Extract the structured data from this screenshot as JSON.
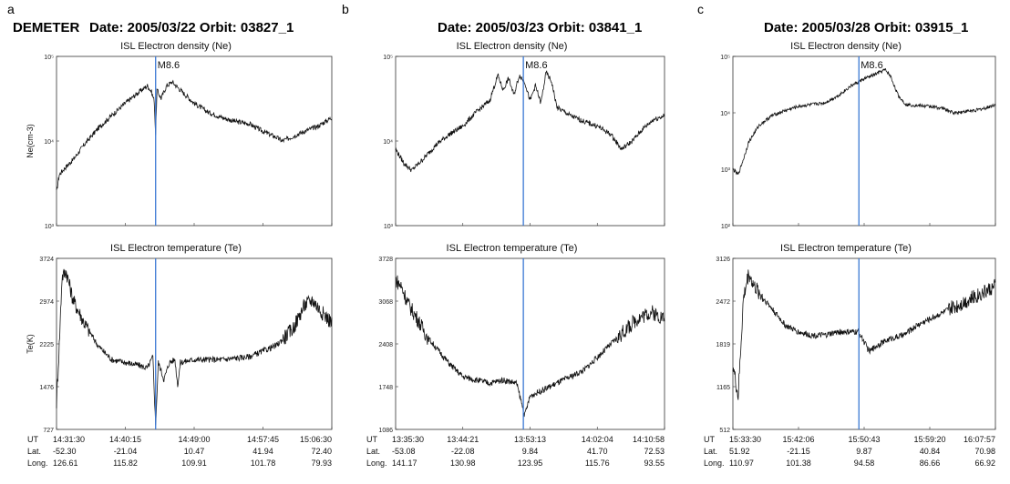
{
  "header": {
    "mission": "DEMETER",
    "panels": [
      {
        "letter": "a",
        "title": "Date: 2005/03/22  Orbit: 03827_1"
      },
      {
        "letter": "b",
        "title": "Date: 2005/03/23  Orbit: 03841_1"
      },
      {
        "letter": "c",
        "title": "Date: 2005/03/28  Orbit: 03915_1"
      }
    ]
  },
  "colors": {
    "trace": "#111111",
    "event_line": "#3a78d4",
    "axes": "#333333"
  },
  "chart_data": [
    {
      "type": "line",
      "panel": "a",
      "title": "ISL Electron density (Ne)",
      "ylabel": "Ne(cm-3)",
      "yscale": "log",
      "yticks": [
        "10⁵",
        "10⁴",
        "10³"
      ],
      "ylim": [
        1000,
        100000
      ],
      "event_label": "M8.6",
      "event_x": 0.36,
      "series": [
        {
          "values": [
            [
              0,
              2500
            ],
            [
              0.01,
              4000
            ],
            [
              0.03,
              4800
            ],
            [
              0.06,
              6000
            ],
            [
              0.1,
              9000
            ],
            [
              0.15,
              14000
            ],
            [
              0.2,
              20000
            ],
            [
              0.25,
              28000
            ],
            [
              0.3,
              38000
            ],
            [
              0.33,
              45000
            ],
            [
              0.345,
              38000
            ],
            [
              0.355,
              30000
            ],
            [
              0.36,
              12000
            ],
            [
              0.365,
              40000
            ],
            [
              0.38,
              32000
            ],
            [
              0.4,
              45000
            ],
            [
              0.42,
              50000
            ],
            [
              0.45,
              40000
            ],
            [
              0.5,
              28000
            ],
            [
              0.55,
              22000
            ],
            [
              0.6,
              19000
            ],
            [
              0.65,
              17000
            ],
            [
              0.7,
              16000
            ],
            [
              0.75,
              13000
            ],
            [
              0.8,
              11000
            ],
            [
              0.82,
              10000
            ],
            [
              0.85,
              11000
            ],
            [
              0.9,
              13000
            ],
            [
              0.95,
              15000
            ],
            [
              1,
              19000
            ]
          ]
        }
      ]
    },
    {
      "type": "line",
      "panel": "a",
      "title": "ISL Electron temperature (Te)",
      "ylabel": "Te(K)",
      "yticks": [
        "3724",
        "2974",
        "2225",
        "1476",
        "727"
      ],
      "ylim": [
        727,
        3724
      ],
      "event_x": 0.36,
      "series": [
        {
          "values": [
            [
              0,
              1200
            ],
            [
              0.01,
              2200
            ],
            [
              0.02,
              3400
            ],
            [
              0.035,
              3500
            ],
            [
              0.06,
              3000
            ],
            [
              0.1,
              2600
            ],
            [
              0.15,
              2200
            ],
            [
              0.2,
              1950
            ],
            [
              0.25,
              1900
            ],
            [
              0.3,
              1850
            ],
            [
              0.33,
              1800
            ],
            [
              0.35,
              2000
            ],
            [
              0.36,
              800
            ],
            [
              0.37,
              1900
            ],
            [
              0.39,
              1600
            ],
            [
              0.41,
              1900
            ],
            [
              0.43,
              1950
            ],
            [
              0.44,
              1500
            ],
            [
              0.45,
              1900
            ],
            [
              0.5,
              1950
            ],
            [
              0.6,
              1950
            ],
            [
              0.7,
              2000
            ],
            [
              0.8,
              2200
            ],
            [
              0.86,
              2500
            ],
            [
              0.9,
              2900
            ],
            [
              0.93,
              3000
            ],
            [
              0.96,
              2800
            ],
            [
              1,
              2600
            ]
          ]
        }
      ],
      "x_rows": [
        {
          "label": "UT",
          "values": [
            "14:31:30",
            "14:40:15",
            "14:49:00",
            "14:57:45",
            "15:06:30"
          ]
        },
        {
          "label": "Lat.",
          "values": [
            "-52.30",
            "-21.04",
            "10.47",
            "41.94",
            "72.40"
          ]
        },
        {
          "label": "Long.",
          "values": [
            "126.61",
            "115.82",
            "109.91",
            "101.78",
            "79.93"
          ]
        }
      ]
    },
    {
      "type": "line",
      "panel": "b",
      "title": "ISL Electron density (Ne)",
      "ylabel": "",
      "yscale": "log",
      "yticks": [
        "10⁵",
        "10⁴",
        "10³"
      ],
      "ylim": [
        1000,
        100000
      ],
      "event_label": "M8.6",
      "event_x": 0.475,
      "series": [
        {
          "values": [
            [
              0,
              8000
            ],
            [
              0.03,
              5500
            ],
            [
              0.06,
              4500
            ],
            [
              0.1,
              6000
            ],
            [
              0.15,
              9000
            ],
            [
              0.2,
              12000
            ],
            [
              0.25,
              15000
            ],
            [
              0.3,
              22000
            ],
            [
              0.35,
              30000
            ],
            [
              0.38,
              60000
            ],
            [
              0.4,
              40000
            ],
            [
              0.42,
              55000
            ],
            [
              0.44,
              35000
            ],
            [
              0.46,
              60000
            ],
            [
              0.48,
              50000
            ],
            [
              0.5,
              30000
            ],
            [
              0.52,
              45000
            ],
            [
              0.54,
              28000
            ],
            [
              0.56,
              65000
            ],
            [
              0.58,
              50000
            ],
            [
              0.6,
              25000
            ],
            [
              0.65,
              20000
            ],
            [
              0.7,
              17000
            ],
            [
              0.75,
              15000
            ],
            [
              0.8,
              12000
            ],
            [
              0.84,
              8000
            ],
            [
              0.88,
              10000
            ],
            [
              0.92,
              14000
            ],
            [
              0.96,
              18000
            ],
            [
              1,
              20000
            ]
          ]
        }
      ]
    },
    {
      "type": "line",
      "panel": "b",
      "title": "ISL Electron temperature (Te)",
      "ylabel": "",
      "yticks": [
        "3728",
        "3068",
        "2408",
        "1748",
        "1086"
      ],
      "ylim": [
        1086,
        3728
      ],
      "event_x": 0.475,
      "series": [
        {
          "values": [
            [
              0,
              3400
            ],
            [
              0.02,
              3300
            ],
            [
              0.05,
              3000
            ],
            [
              0.08,
              2800
            ],
            [
              0.12,
              2500
            ],
            [
              0.16,
              2300
            ],
            [
              0.2,
              2100
            ],
            [
              0.25,
              1900
            ],
            [
              0.3,
              1850
            ],
            [
              0.35,
              1800
            ],
            [
              0.4,
              1850
            ],
            [
              0.45,
              1800
            ],
            [
              0.48,
              1300
            ],
            [
              0.5,
              1600
            ],
            [
              0.55,
              1700
            ],
            [
              0.6,
              1800
            ],
            [
              0.65,
              1900
            ],
            [
              0.7,
              2000
            ],
            [
              0.75,
              2200
            ],
            [
              0.8,
              2400
            ],
            [
              0.85,
              2600
            ],
            [
              0.9,
              2800
            ],
            [
              0.95,
              2900
            ],
            [
              1,
              2800
            ]
          ]
        }
      ],
      "x_rows": [
        {
          "label": "UT",
          "values": [
            "13:35:30",
            "13:44:21",
            "13:53:13",
            "14:02:04",
            "14:10:58"
          ]
        },
        {
          "label": "Lat.",
          "values": [
            "-53.08",
            "-22.08",
            "9.84",
            "41.70",
            "72.53"
          ]
        },
        {
          "label": "Long.",
          "values": [
            "141.17",
            "130.98",
            "123.95",
            "115.76",
            "93.55"
          ]
        }
      ]
    },
    {
      "type": "line",
      "panel": "c",
      "title": "ISL Electron density (Ne)",
      "ylabel": "",
      "yscale": "log",
      "yticks": [
        "10⁵",
        "10⁴",
        "10³",
        "10²"
      ],
      "ylim": [
        100,
        100000
      ],
      "event_label": "M8.6",
      "event_x": 0.48,
      "series": [
        {
          "values": [
            [
              0,
              1000
            ],
            [
              0.02,
              800
            ],
            [
              0.04,
              1500
            ],
            [
              0.06,
              3000
            ],
            [
              0.1,
              6000
            ],
            [
              0.15,
              9000
            ],
            [
              0.2,
              11000
            ],
            [
              0.25,
              13000
            ],
            [
              0.3,
              14000
            ],
            [
              0.35,
              15000
            ],
            [
              0.4,
              20000
            ],
            [
              0.45,
              30000
            ],
            [
              0.5,
              40000
            ],
            [
              0.55,
              50000
            ],
            [
              0.58,
              58000
            ],
            [
              0.6,
              45000
            ],
            [
              0.63,
              20000
            ],
            [
              0.66,
              14000
            ],
            [
              0.7,
              13500
            ],
            [
              0.75,
              13000
            ],
            [
              0.8,
              12000
            ],
            [
              0.84,
              10000
            ],
            [
              0.88,
              10500
            ],
            [
              0.92,
              11000
            ],
            [
              0.96,
              12000
            ],
            [
              1,
              14000
            ]
          ]
        }
      ]
    },
    {
      "type": "line",
      "panel": "c",
      "title": "ISL Electron temperature (Te)",
      "ylabel": "",
      "yticks": [
        "3126",
        "2472",
        "1819",
        "1165",
        "512"
      ],
      "ylim": [
        512,
        3126
      ],
      "event_x": 0.48,
      "series": [
        {
          "values": [
            [
              0,
              1500
            ],
            [
              0.02,
              1000
            ],
            [
              0.04,
              2500
            ],
            [
              0.06,
              2900
            ],
            [
              0.08,
              2700
            ],
            [
              0.12,
              2500
            ],
            [
              0.16,
              2300
            ],
            [
              0.2,
              2100
            ],
            [
              0.25,
              2000
            ],
            [
              0.3,
              1950
            ],
            [
              0.35,
              1950
            ],
            [
              0.4,
              2000
            ],
            [
              0.45,
              2000
            ],
            [
              0.48,
              2000
            ],
            [
              0.52,
              1700
            ],
            [
              0.55,
              1800
            ],
            [
              0.6,
              1900
            ],
            [
              0.65,
              1950
            ],
            [
              0.7,
              2100
            ],
            [
              0.75,
              2200
            ],
            [
              0.8,
              2300
            ],
            [
              0.85,
              2400
            ],
            [
              0.9,
              2500
            ],
            [
              0.95,
              2600
            ],
            [
              1,
              2700
            ]
          ]
        }
      ],
      "x_rows": [
        {
          "label": "UT",
          "values": [
            "15:33:30",
            "15:42:06",
            "15:50:43",
            "15:59:20",
            "16:07:57"
          ]
        },
        {
          "label": "Lat.",
          "values": [
            "51.92",
            "-21.15",
            "9.87",
            "40.84",
            "70.98"
          ]
        },
        {
          "label": "Long.",
          "values": [
            "110.97",
            "101.38",
            "94.58",
            "86.66",
            "66.92"
          ]
        }
      ]
    }
  ]
}
